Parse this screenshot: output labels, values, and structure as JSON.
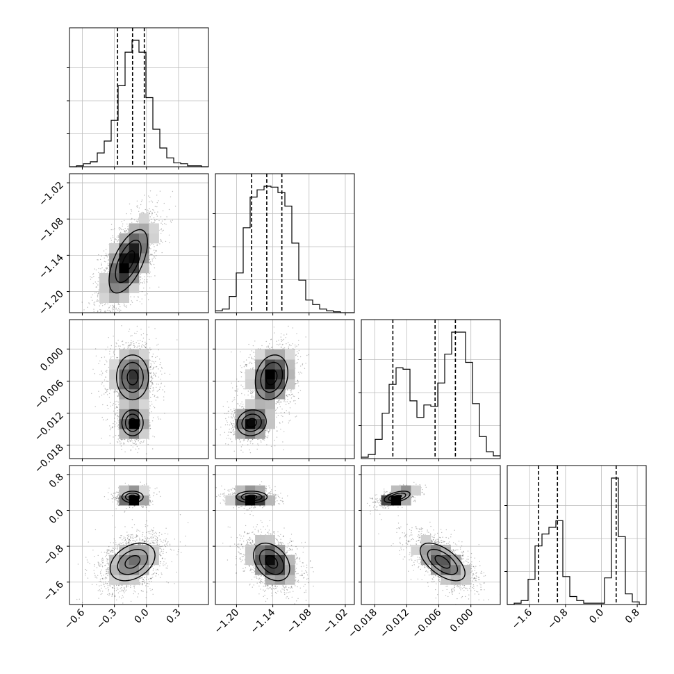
{
  "chart_data": {
    "type": "corner",
    "grid": true,
    "parameters": [
      {
        "xlim": [
          -0.72,
          0.58
        ],
        "ticks": [
          -0.6,
          -0.3,
          0.0,
          0.3
        ],
        "tick_labels": [
          "−0.6",
          "−0.3",
          "0.0",
          "0.3"
        ]
      },
      {
        "xlim": [
          -1.235,
          -1.005
        ],
        "ticks": [
          -1.2,
          -1.14,
          -1.08,
          -1.02
        ],
        "tick_labels": [
          "−1.20",
          "−1.14",
          "−1.08",
          "−1.02"
        ]
      },
      {
        "xlim": [
          -0.0205,
          0.0055
        ],
        "ticks": [
          -0.018,
          -0.012,
          -0.006,
          0.0
        ],
        "tick_labels": [
          "−0.018",
          "−0.012",
          "−0.006",
          "0.000"
        ]
      },
      {
        "xlim": [
          -2.1,
          1.0
        ],
        "ticks": [
          -1.6,
          -0.8,
          0.0,
          0.8
        ],
        "tick_labels": [
          "−1.6",
          "−0.8",
          "0.0",
          "0.8"
        ]
      }
    ],
    "histograms": [
      {
        "bin_edges": [
          -0.72,
          -0.655,
          -0.59,
          -0.525,
          -0.46,
          -0.395,
          -0.33,
          -0.265,
          -0.2,
          -0.135,
          -0.07,
          -0.005,
          0.06,
          0.125,
          0.19,
          0.255,
          0.32,
          0.385,
          0.45,
          0.515,
          0.58
        ],
        "counts": [
          0,
          1,
          3,
          5,
          14,
          26,
          47,
          82,
          116,
          128,
          116,
          70,
          38,
          19,
          9,
          4,
          3,
          1,
          1,
          0
        ],
        "quantiles": [
          -0.27,
          -0.13,
          -0.02
        ]
      },
      {
        "bin_edges": [
          -1.235,
          -1.2235,
          -1.212,
          -1.2005,
          -1.189,
          -1.1775,
          -1.166,
          -1.1545,
          -1.143,
          -1.1315,
          -1.12,
          -1.1085,
          -1.097,
          -1.0855,
          -1.074,
          -1.0625,
          -1.051,
          -1.0395,
          -1.028,
          -1.0165,
          -1.005
        ],
        "counts": [
          2,
          4,
          18,
          44,
          94,
          128,
          136,
          140,
          139,
          133,
          118,
          77,
          36,
          14,
          9,
          4,
          2,
          1,
          0,
          0
        ],
        "quantiles": [
          -1.175,
          -1.15,
          -1.125
        ]
      },
      {
        "bin_edges": [
          -0.0205,
          -0.0192,
          -0.0179,
          -0.0166,
          -0.0153,
          -0.014,
          -0.0127,
          -0.0114,
          -0.0101,
          -0.0088,
          -0.0075,
          -0.0062,
          -0.0049,
          -0.0036,
          -0.0023,
          -0.001,
          0.0003,
          0.0016,
          0.0029,
          0.0042,
          0.0055
        ],
        "counts": [
          1,
          3,
          14,
          33,
          54,
          66,
          65,
          42,
          30,
          39,
          38,
          55,
          76,
          92,
          92,
          70,
          40,
          16,
          5,
          2
        ],
        "quantiles": [
          -0.0146,
          -0.0067,
          -0.0029
        ]
      },
      {
        "bin_edges": [
          -2.1,
          -1.945,
          -1.79,
          -1.635,
          -1.48,
          -1.325,
          -1.17,
          -1.015,
          -0.86,
          -0.705,
          -0.55,
          -0.395,
          -0.24,
          -0.085,
          0.07,
          0.225,
          0.38,
          0.535,
          0.69,
          0.845,
          1.0
        ],
        "counts": [
          0,
          1,
          3,
          19,
          44,
          53,
          58,
          63,
          21,
          6,
          3,
          1,
          1,
          1,
          20,
          95,
          51,
          8,
          2,
          0
        ],
        "quantiles": [
          -1.4,
          -0.98,
          0.33
        ]
      }
    ],
    "scatter": [
      {
        "row": 1,
        "col": 0,
        "modes": [
          {
            "cx": -0.17,
            "cy": -1.15,
            "sx": 0.12,
            "sy": 0.035,
            "rho": 0.6,
            "w": 1
          }
        ]
      },
      {
        "row": 2,
        "col": 0,
        "modes": [
          {
            "cx": -0.13,
            "cy": -0.0053,
            "sx": 0.1,
            "sy": 0.0028,
            "rho": 0.0,
            "w": 0.65
          },
          {
            "cx": -0.13,
            "cy": -0.0138,
            "sx": 0.07,
            "sy": 0.0017,
            "rho": 0.0,
            "w": 0.35
          }
        ]
      },
      {
        "row": 2,
        "col": 1,
        "modes": [
          {
            "cx": -1.142,
            "cy": -0.0053,
            "sx": 0.018,
            "sy": 0.0028,
            "rho": 0.2,
            "w": 0.65
          },
          {
            "cx": -1.175,
            "cy": -0.0138,
            "sx": 0.017,
            "sy": 0.0017,
            "rho": 0.1,
            "w": 0.35
          }
        ]
      },
      {
        "row": 3,
        "col": 0,
        "modes": [
          {
            "cx": -0.13,
            "cy": 0.3,
            "sx": 0.07,
            "sy": 0.09,
            "rho": 0.0,
            "w": 0.3
          },
          {
            "cx": -0.13,
            "cy": -1.15,
            "sx": 0.14,
            "sy": 0.28,
            "rho": 0.35,
            "w": 0.7
          }
        ]
      },
      {
        "row": 3,
        "col": 1,
        "modes": [
          {
            "cx": -1.175,
            "cy": 0.3,
            "sx": 0.018,
            "sy": 0.09,
            "rho": 0.0,
            "w": 0.3
          },
          {
            "cx": -1.142,
            "cy": -1.15,
            "sx": 0.02,
            "sy": 0.28,
            "rho": -0.35,
            "w": 0.7
          }
        ]
      },
      {
        "row": 3,
        "col": 2,
        "modes": [
          {
            "cx": -0.0138,
            "cy": 0.3,
            "sx": 0.0017,
            "sy": 0.09,
            "rho": 0.5,
            "w": 0.3
          },
          {
            "cx": -0.0053,
            "cy": -1.15,
            "sx": 0.0028,
            "sy": 0.28,
            "rho": -0.6,
            "w": 0.7
          }
        ]
      }
    ]
  }
}
